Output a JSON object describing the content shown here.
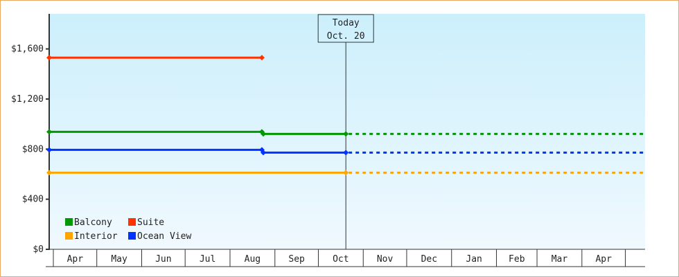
{
  "chart_data": {
    "type": "line",
    "title": "",
    "xlabel": "",
    "ylabel": "",
    "ylim": [
      0,
      1880
    ],
    "y_ticks": [
      0,
      400,
      800,
      1200,
      1600
    ],
    "y_tick_labels": [
      "$0",
      "$400",
      "$800",
      "$1,200",
      "$1,600"
    ],
    "x_tick_labels": [
      "Apr",
      "May",
      "Jun",
      "Jul",
      "Aug",
      "Sep",
      "Oct",
      "Nov",
      "Dec",
      "Jan",
      "Feb",
      "Mar",
      "Apr"
    ],
    "x_range": [
      "Mar 29",
      "May 13 (next year)"
    ],
    "grid": false,
    "legend_position": "bottom-left",
    "today_marker": {
      "line1": "Today",
      "line2": "Oct. 20",
      "date": "Oct 20"
    },
    "series": [
      {
        "name": "Balcony",
        "color": "#009900",
        "points": [
          [
            "Mar 29",
            938
          ],
          [
            "Aug 23",
            938
          ],
          [
            "Aug 24",
            921
          ],
          [
            "Oct 20",
            921
          ]
        ],
        "projected_to_axis_end": true
      },
      {
        "name": "Suite",
        "color": "#ff3300",
        "points": [
          [
            "Mar 29",
            1530
          ],
          [
            "Aug 23",
            1530
          ]
        ],
        "projected_to_axis_end": false
      },
      {
        "name": "Interior",
        "color": "#ffa500",
        "points": [
          [
            "Mar 29",
            612
          ],
          [
            "Oct 20",
            612
          ]
        ],
        "projected_to_axis_end": true
      },
      {
        "name": "Ocean View",
        "color": "#0033ff",
        "points": [
          [
            "Mar 29",
            794
          ],
          [
            "Aug 23",
            794
          ],
          [
            "Aug 24",
            772
          ],
          [
            "Oct 20",
            772
          ]
        ],
        "projected_to_axis_end": true
      }
    ]
  }
}
